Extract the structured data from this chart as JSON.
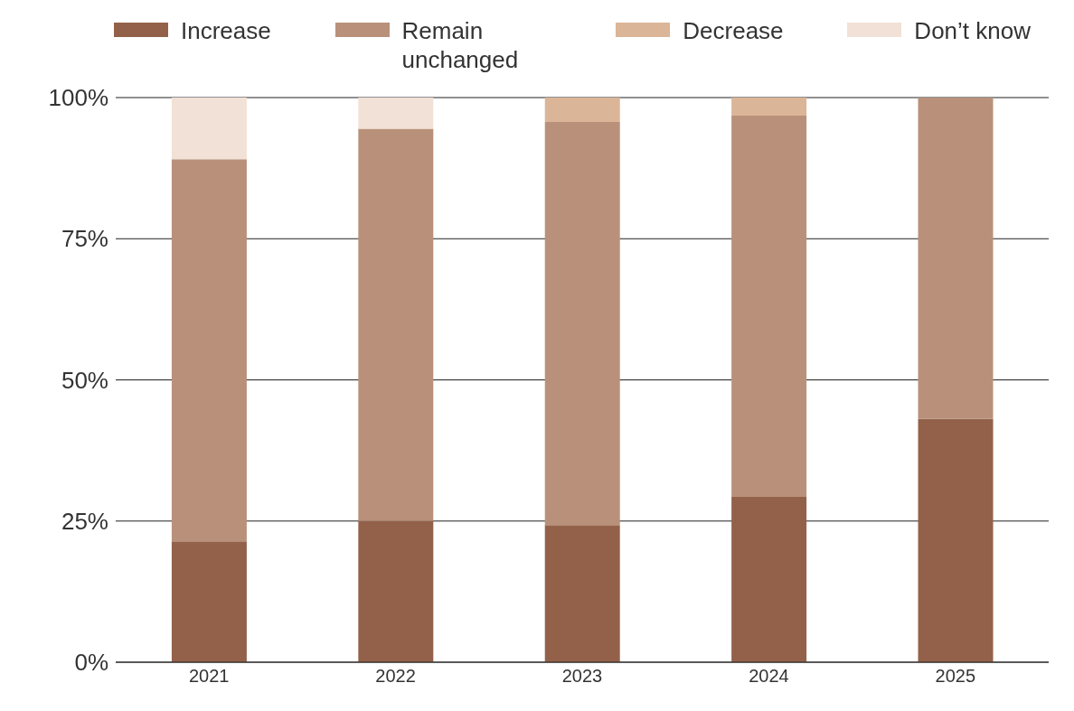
{
  "chart_data": {
    "type": "bar",
    "stacked": true,
    "categories": [
      "2021",
      "2022",
      "2023",
      "2024",
      "2025"
    ],
    "series": [
      {
        "name": "Increase",
        "color": "#936149",
        "values": [
          21.4,
          25.0,
          24.3,
          29.3,
          43.1
        ]
      },
      {
        "name": "Remain unchanged",
        "color": "#b9917a",
        "values": [
          67.7,
          69.5,
          71.4,
          67.5,
          56.9
        ]
      },
      {
        "name": "Decrease",
        "color": "#dbb597",
        "values": [
          null,
          null,
          4.3,
          3.2,
          null
        ]
      },
      {
        "name": "Don’t know",
        "color": "#f2e1d6",
        "values": [
          10.9,
          5.5,
          null,
          null,
          null
        ]
      }
    ],
    "ylim": [
      0,
      100
    ],
    "yticks": [
      {
        "value": 0,
        "label": "0%"
      },
      {
        "value": 25,
        "label": "25%"
      },
      {
        "value": 50,
        "label": "50%"
      },
      {
        "value": 75,
        "label": "75%"
      },
      {
        "value": 100,
        "label": "100%"
      }
    ],
    "grid": "y",
    "legend": "top"
  }
}
